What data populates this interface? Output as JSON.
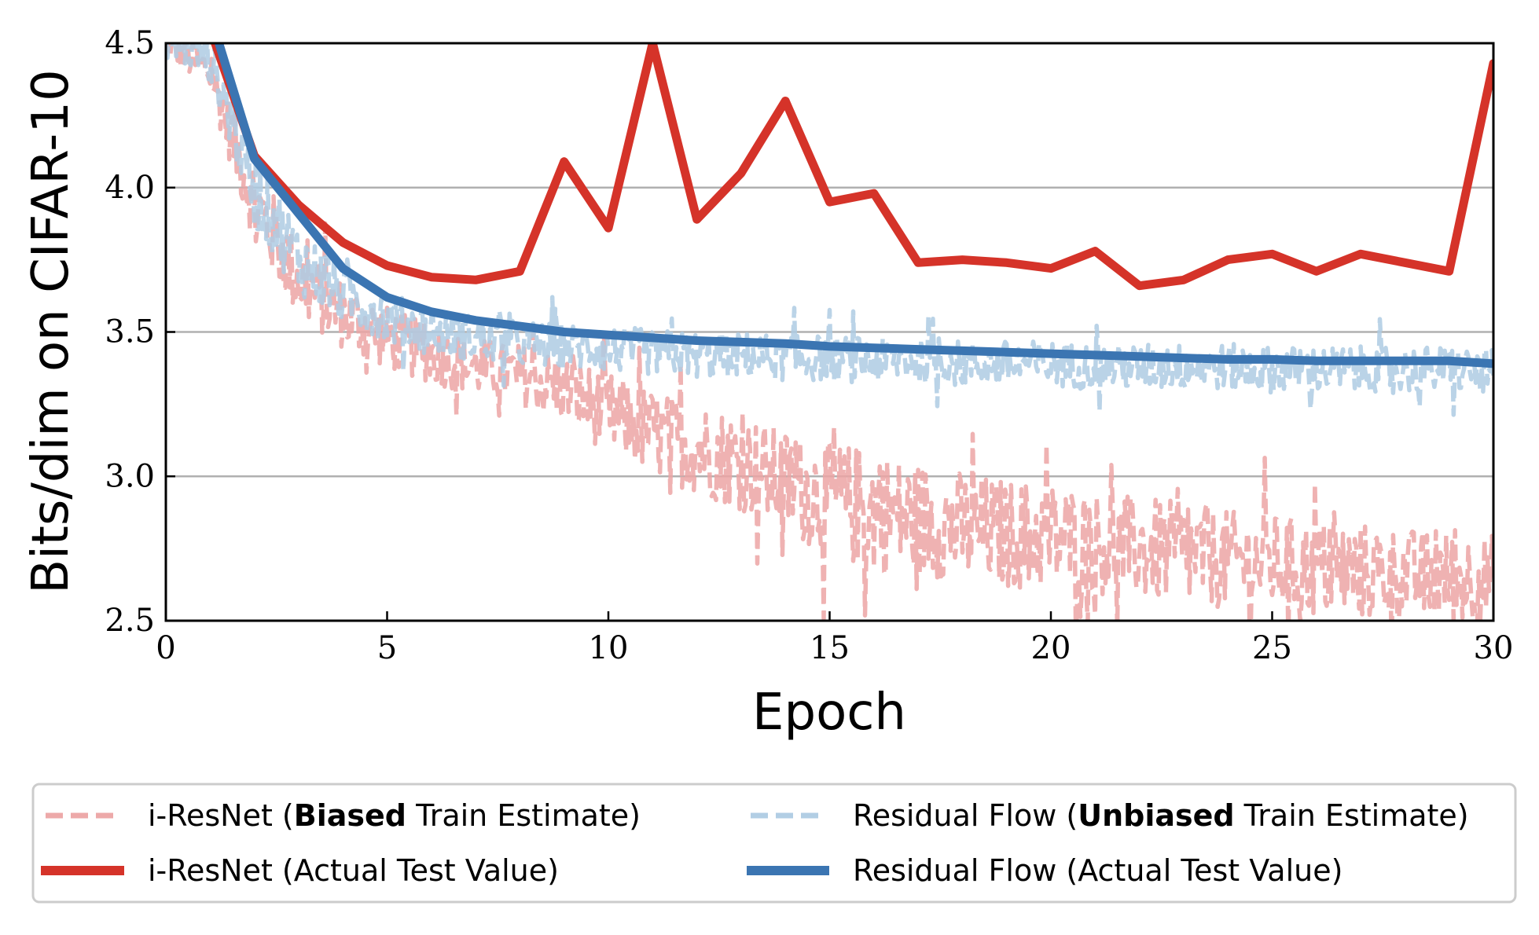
{
  "chart_data": {
    "type": "line",
    "xlabel": "Epoch",
    "ylabel": "Bits/dim on CIFAR-10",
    "xlim": [
      0,
      30
    ],
    "ylim": [
      2.5,
      4.5
    ],
    "xticks": [
      "0",
      "5",
      "10",
      "15",
      "20",
      "25",
      "30"
    ],
    "yticks": [
      "2.5",
      "3.0",
      "3.5",
      "4.0",
      "4.5"
    ],
    "grid": "horizontal",
    "legend_position": "bottom",
    "colors": {
      "iresnet_test": "#d53329",
      "iresnet_train": "#eca4a4",
      "resflow_test": "#3b75b2",
      "resflow_train": "#aecbe3"
    },
    "series": [
      {
        "key": "iresnet_train",
        "name_parts": [
          "i-ResNet (",
          "Biased",
          " Train Estimate)"
        ],
        "style": "dashed",
        "envelope": {
          "x": [
            0,
            1,
            2,
            3,
            4,
            5,
            6,
            7,
            8,
            9,
            10,
            11,
            12,
            13,
            14,
            15,
            16,
            17,
            18,
            19,
            20,
            21,
            22,
            23,
            24,
            25,
            26,
            27,
            28,
            29,
            30
          ],
          "center": [
            4.5,
            4.4,
            3.95,
            3.68,
            3.56,
            3.48,
            3.42,
            3.38,
            3.35,
            3.3,
            3.22,
            3.15,
            3.1,
            3.05,
            2.98,
            2.92,
            2.88,
            2.85,
            2.82,
            2.8,
            2.79,
            2.77,
            2.75,
            2.73,
            2.71,
            2.7,
            2.68,
            2.67,
            2.66,
            2.65,
            2.64
          ],
          "spread": [
            0.05,
            0.08,
            0.15,
            0.14,
            0.12,
            0.11,
            0.1,
            0.1,
            0.11,
            0.12,
            0.14,
            0.15,
            0.16,
            0.17,
            0.18,
            0.2,
            0.22,
            0.2,
            0.2,
            0.19,
            0.19,
            0.18,
            0.18,
            0.18,
            0.17,
            0.17,
            0.17,
            0.17,
            0.16,
            0.16,
            0.16
          ]
        }
      },
      {
        "key": "resflow_train",
        "name_parts": [
          "Residual Flow (",
          "Unbiased",
          " Train Estimate)"
        ],
        "style": "dashed",
        "envelope": {
          "x": [
            0,
            1,
            2,
            3,
            4,
            5,
            6,
            7,
            8,
            9,
            10,
            11,
            12,
            13,
            14,
            15,
            16,
            17,
            18,
            19,
            20,
            21,
            22,
            23,
            24,
            25,
            26,
            27,
            28,
            29,
            30
          ],
          "center": [
            4.5,
            4.45,
            4.0,
            3.75,
            3.63,
            3.55,
            3.5,
            3.48,
            3.46,
            3.45,
            3.44,
            3.43,
            3.42,
            3.42,
            3.41,
            3.41,
            3.4,
            3.4,
            3.39,
            3.39,
            3.39,
            3.38,
            3.38,
            3.38,
            3.38,
            3.37,
            3.37,
            3.37,
            3.37,
            3.37,
            3.36
          ],
          "spread": [
            0.05,
            0.08,
            0.14,
            0.12,
            0.1,
            0.09,
            0.08,
            0.08,
            0.08,
            0.08,
            0.08,
            0.08,
            0.08,
            0.08,
            0.08,
            0.08,
            0.08,
            0.08,
            0.08,
            0.08,
            0.08,
            0.08,
            0.08,
            0.08,
            0.08,
            0.08,
            0.08,
            0.08,
            0.08,
            0.08,
            0.08
          ]
        }
      },
      {
        "key": "iresnet_test",
        "name": "i-ResNet (Actual Test Value)",
        "style": "solid",
        "x": [
          1,
          2,
          3,
          4,
          5,
          6,
          7,
          8,
          9,
          10,
          11,
          12,
          13,
          14,
          15,
          16,
          17,
          18,
          19,
          20,
          21,
          22,
          23,
          24,
          25,
          26,
          27,
          28,
          29,
          30
        ],
        "values": [
          4.55,
          4.11,
          3.94,
          3.81,
          3.73,
          3.69,
          3.68,
          3.71,
          4.09,
          3.86,
          4.5,
          3.89,
          4.05,
          4.3,
          3.95,
          3.98,
          3.74,
          3.75,
          3.74,
          3.72,
          3.78,
          3.66,
          3.68,
          3.75,
          3.77,
          3.71,
          3.77,
          3.74,
          3.71,
          4.43
        ]
      },
      {
        "key": "resflow_test",
        "name": "Residual Flow (Actual Test Value)",
        "style": "solid",
        "x": [
          1,
          2,
          3,
          4,
          5,
          6,
          7,
          8,
          9,
          10,
          11,
          12,
          13,
          14,
          15,
          16,
          17,
          18,
          19,
          20,
          21,
          22,
          23,
          24,
          25,
          26,
          27,
          28,
          29,
          30
        ],
        "values": [
          4.6,
          4.1,
          3.91,
          3.72,
          3.62,
          3.57,
          3.54,
          3.52,
          3.5,
          3.49,
          3.48,
          3.47,
          3.465,
          3.46,
          3.45,
          3.445,
          3.44,
          3.435,
          3.43,
          3.425,
          3.42,
          3.415,
          3.41,
          3.405,
          3.405,
          3.4,
          3.4,
          3.4,
          3.4,
          3.39
        ]
      }
    ]
  }
}
